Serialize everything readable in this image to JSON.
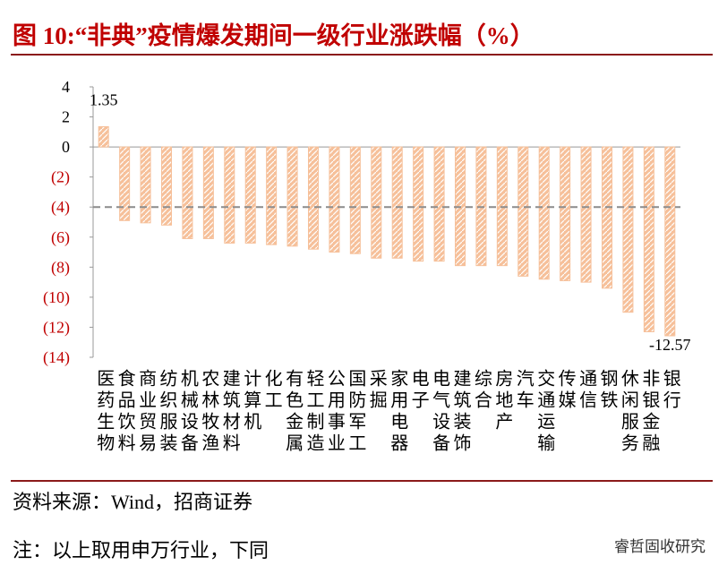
{
  "header": {
    "title": "图 10:“非典”疫情爆发期间一级行业涨跌幅（%）"
  },
  "chart_data": {
    "type": "bar",
    "categories": [
      "医药生物",
      "食品饮料",
      "商业贸易",
      "纺织服装",
      "机械设备",
      "农林牧渔",
      "建筑材料",
      "计算机",
      "化工",
      "有色金属",
      "轻工制造",
      "公用事业",
      "国防军工",
      "采掘",
      "家用电器",
      "电子",
      "电气设备",
      "建筑装饰",
      "综合",
      "房地产",
      "汽车",
      "交通运输",
      "传媒",
      "通信",
      "钢铁",
      "休闲服务",
      "非银金融",
      "银行"
    ],
    "values": [
      1.35,
      -4.9,
      -5.05,
      -5.2,
      -6.1,
      -6.1,
      -6.4,
      -6.4,
      -6.5,
      -6.6,
      -6.8,
      -7.0,
      -7.1,
      -7.4,
      -7.4,
      -7.6,
      -7.6,
      -7.9,
      -7.9,
      -7.9,
      -8.6,
      -8.8,
      -8.9,
      -9.0,
      -9.4,
      -11.0,
      -12.3,
      -12.57
    ],
    "value_labels": [
      "1.35",
      null,
      null,
      null,
      null,
      null,
      null,
      null,
      null,
      null,
      null,
      null,
      null,
      null,
      null,
      null,
      null,
      null,
      null,
      null,
      null,
      null,
      null,
      null,
      null,
      null,
      null,
      "-12.57"
    ],
    "color": "#f6c09a",
    "ylim": [
      -14,
      4
    ],
    "yticks": [
      4,
      2,
      0,
      {
        "value": -2,
        "label": "(2)"
      },
      {
        "value": -4,
        "label": "(4)"
      },
      {
        "value": -6,
        "label": "(6)"
      },
      {
        "value": -8,
        "label": "(8)"
      },
      {
        "value": -10,
        "label": "(10)"
      },
      {
        "value": -12,
        "label": "(12)"
      },
      {
        "value": -14,
        "label": "(14)"
      }
    ],
    "negative_tick_color": "#c00000",
    "reference_line": -4
  },
  "footer": {
    "source": "资料来源：Wind，招商证券",
    "note": "注：以上取用申万行业，下同",
    "watermark": "睿哲固收研究"
  }
}
